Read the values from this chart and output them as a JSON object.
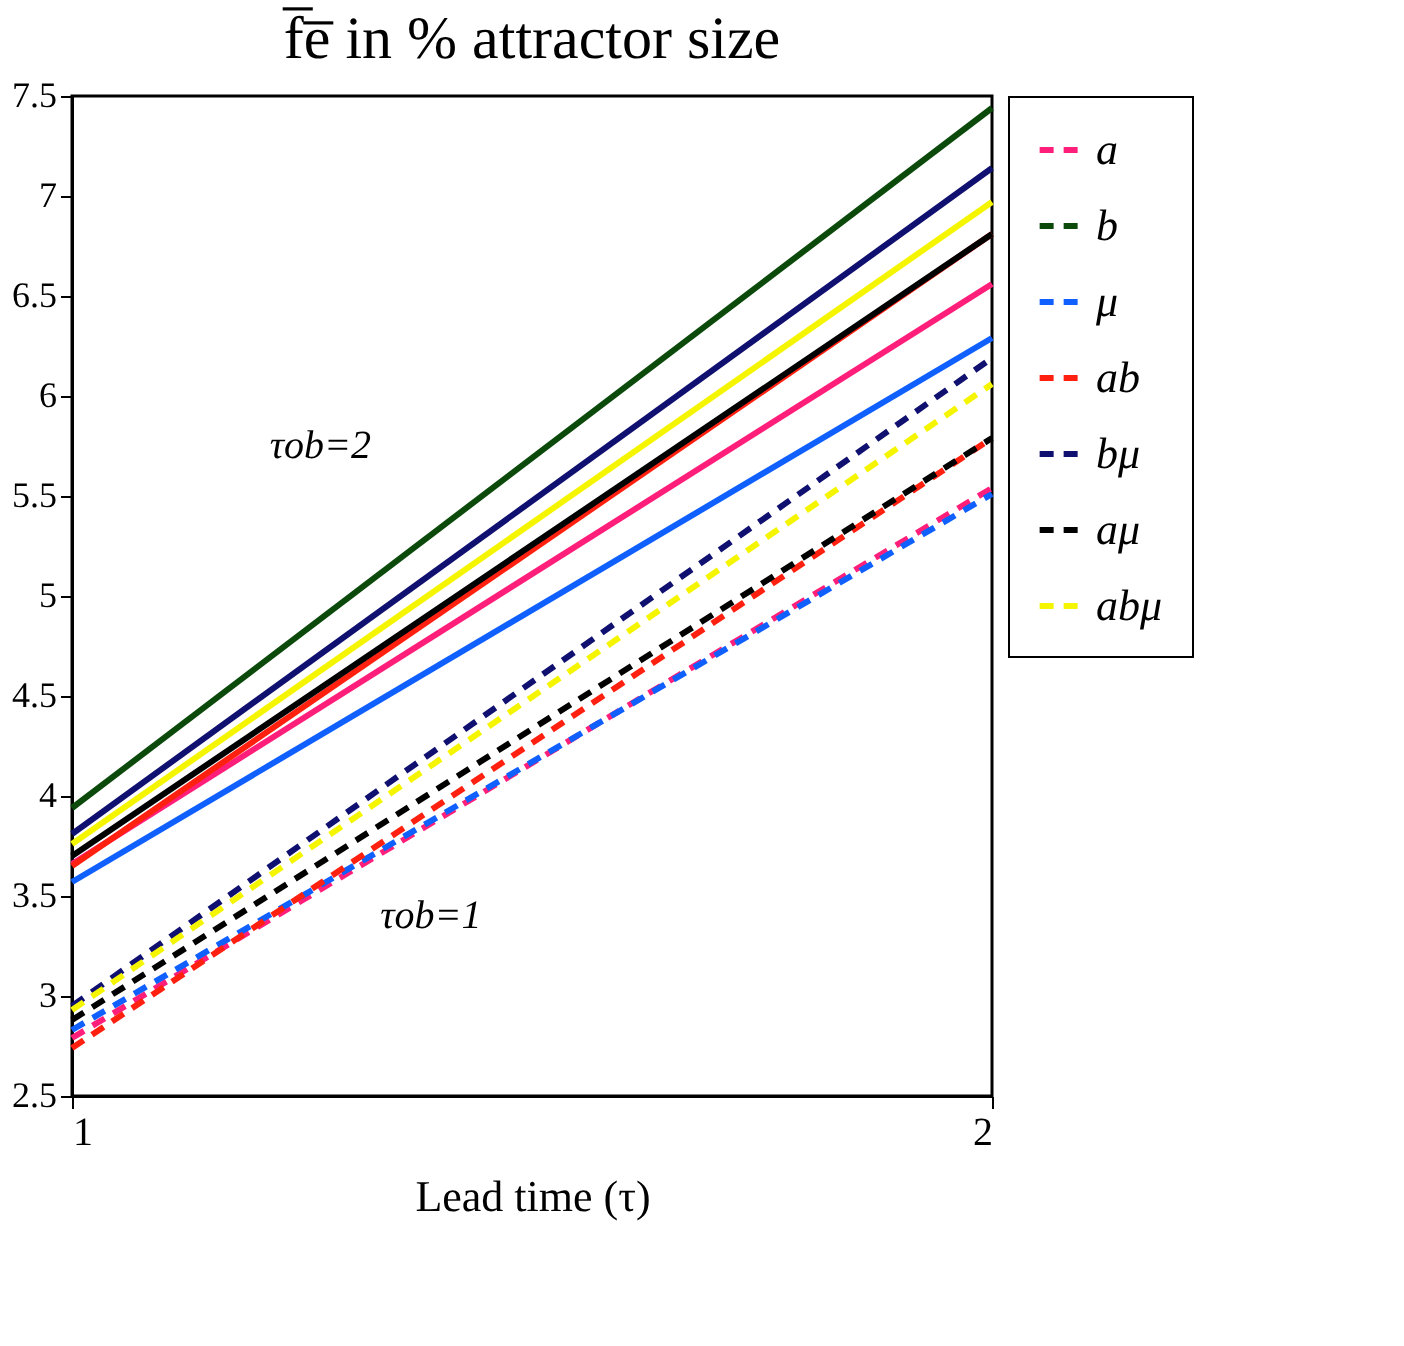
{
  "chart_data": {
    "type": "line",
    "title": "f̅e̅ in % attractor size",
    "xlabel": "Lead time (τ)",
    "x": [
      1,
      2
    ],
    "xlim": [
      1,
      2
    ],
    "xticks": [
      1,
      2
    ],
    "ylim": [
      2.5,
      7.5
    ],
    "yticks": [
      2.5,
      3,
      3.5,
      4,
      4.5,
      5,
      5.5,
      6,
      6.5,
      7,
      7.5
    ],
    "grid": false,
    "legend": "top right",
    "marker": "none",
    "series": [
      {
        "name": "a",
        "color": "#ff1f7a",
        "line_style": "dashed",
        "values": [
          2.79,
          5.54
        ]
      },
      {
        "name": "b",
        "color": "#0b4a0b",
        "line_style": "dashed",
        "values": [
          null,
          null
        ]
      },
      {
        "name": "μ",
        "color": "#1060ff",
        "line_style": "dashed",
        "values": [
          2.83,
          5.51
        ]
      },
      {
        "name": "ab",
        "color": "#ff2010",
        "line_style": "dashed",
        "values": [
          2.74,
          5.79
        ]
      },
      {
        "name": "bμ",
        "color": "#101070",
        "line_style": "dashed",
        "values": [
          2.95,
          6.19
        ]
      },
      {
        "name": "aμ",
        "color": "#000000",
        "line_style": "dashed",
        "values": [
          2.88,
          5.79
        ]
      },
      {
        "name": "abμ",
        "color": "#f5f500",
        "line_style": "dashed",
        "values": [
          2.93,
          6.06
        ]
      },
      {
        "color": "#ff1f7a",
        "line_style": "solid",
        "values": [
          3.66,
          6.56
        ]
      },
      {
        "color": "#0b4a0b",
        "line_style": "solid",
        "values": [
          3.94,
          7.44
        ]
      },
      {
        "color": "#1060ff",
        "line_style": "solid",
        "values": [
          3.57,
          6.29
        ]
      },
      {
        "color": "#ff2010",
        "line_style": "solid",
        "values": [
          3.65,
          6.81
        ]
      },
      {
        "color": "#101070",
        "line_style": "solid",
        "values": [
          3.81,
          7.14
        ]
      },
      {
        "color": "#000000",
        "line_style": "solid",
        "values": [
          3.7,
          6.81
        ]
      },
      {
        "color": "#f5f500",
        "line_style": "solid",
        "values": [
          3.76,
          6.97
        ]
      }
    ],
    "annotations": [
      "τob=2",
      "τob=1"
    ]
  }
}
